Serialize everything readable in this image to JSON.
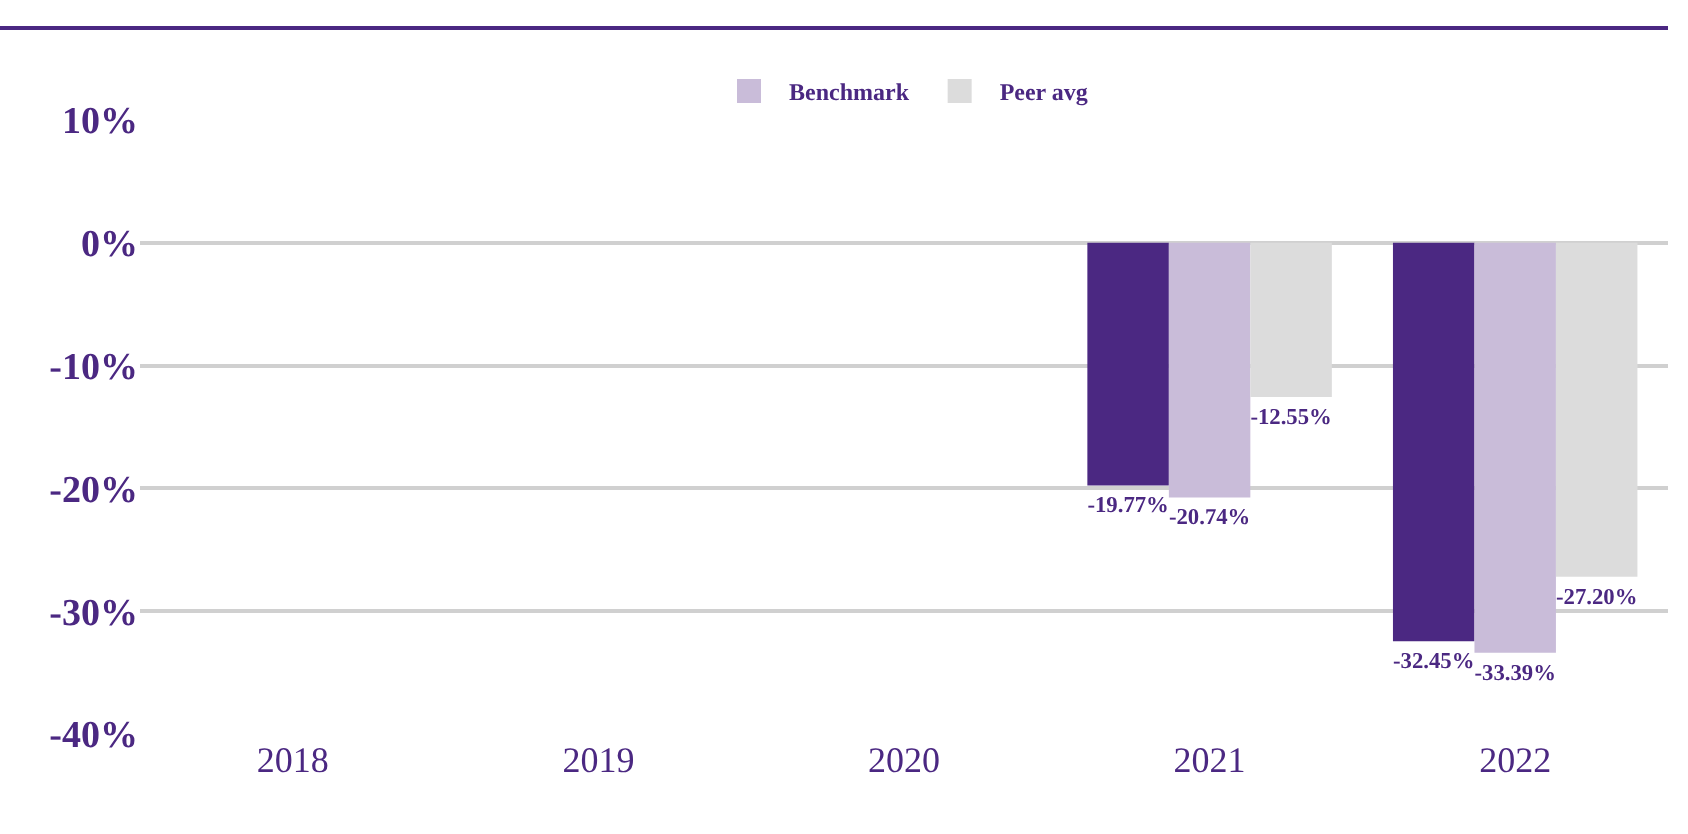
{
  "chart_data": {
    "type": "bar",
    "categories": [
      "2018",
      "2019",
      "2020",
      "2021",
      "2022"
    ],
    "series": [
      {
        "color": "#4b2882",
        "values": [
          null,
          null,
          null,
          -19.77,
          -32.45
        ],
        "value_labels": [
          null,
          null,
          null,
          "-19.77%",
          "-32.45%"
        ]
      },
      {
        "name": "Benchmark",
        "color": "#c9bcd9",
        "values": [
          null,
          null,
          null,
          -20.74,
          -33.39
        ],
        "value_labels": [
          null,
          null,
          null,
          "-20.74%",
          "-33.39%"
        ]
      },
      {
        "name": "Peer avg",
        "color": "#dcdcdc",
        "values": [
          null,
          null,
          null,
          -12.55,
          -27.2
        ],
        "value_labels": [
          null,
          null,
          null,
          "-12.55%",
          "-27.20%"
        ]
      }
    ],
    "ylim": [
      -40,
      10
    ],
    "yticks": [
      {
        "value": 10,
        "label": "10%"
      },
      {
        "value": 0,
        "label": "0%"
      },
      {
        "value": -10,
        "label": "-10%"
      },
      {
        "value": -20,
        "label": "-20%"
      },
      {
        "value": -30,
        "label": "-30%"
      },
      {
        "value": -40,
        "label": "-40%"
      }
    ],
    "grid": "y",
    "legend": "top"
  }
}
